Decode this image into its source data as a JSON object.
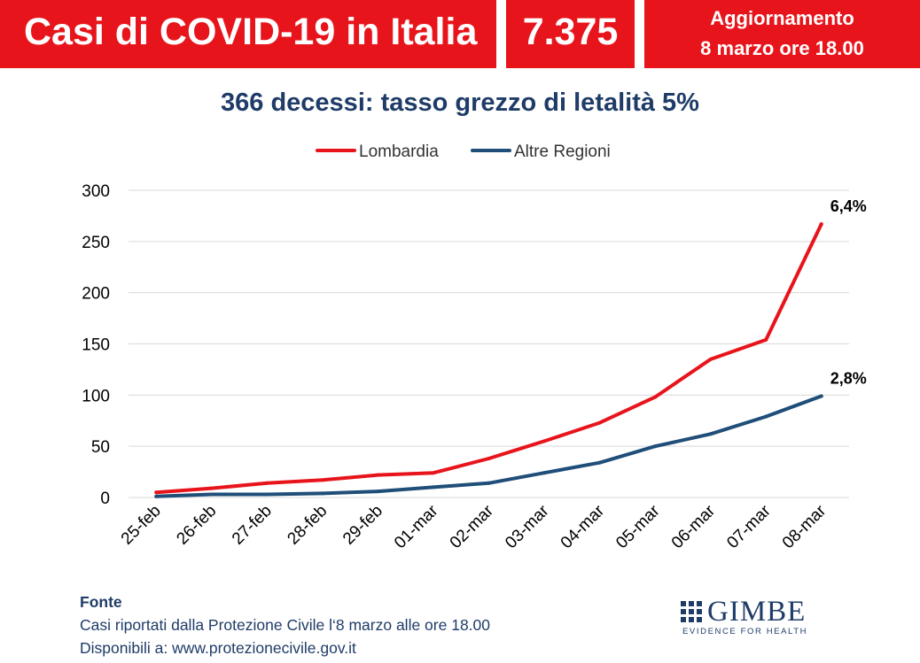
{
  "header": {
    "title": "Casi di COVID-19 in Italia",
    "count": "7.375",
    "update_line1": "Aggiornamento",
    "update_line2": "8 marzo ore 18.00"
  },
  "chart_data": {
    "type": "line",
    "title": "366 decessi: tasso grezzo di letalità 5%",
    "xlabel": "",
    "ylabel": "",
    "ylim": [
      0,
      300
    ],
    "yticks": [
      0,
      50,
      100,
      150,
      200,
      250,
      300
    ],
    "categories": [
      "25-feb",
      "26-feb",
      "27-feb",
      "28-feb",
      "29-feb",
      "01-mar",
      "02-mar",
      "03-mar",
      "04-mar",
      "05-mar",
      "06-mar",
      "07-mar",
      "08-mar"
    ],
    "series": [
      {
        "name": "Lombardia",
        "color": "#e8141b",
        "values": [
          5,
          9,
          14,
          17,
          22,
          24,
          38,
          55,
          73,
          98,
          135,
          154,
          267
        ],
        "end_label": "6,4%"
      },
      {
        "name": "Altre Regioni",
        "color": "#1f4e79",
        "values": [
          1,
          3,
          3,
          4,
          6,
          10,
          14,
          24,
          34,
          50,
          62,
          79,
          99
        ],
        "end_label": "2,8%"
      }
    ],
    "grid": true,
    "legend": "top-center"
  },
  "source": {
    "heading": "Fonte",
    "line1": "Casi riportati dalla Protezione Civile  l‘8 marzo alle ore 18.00",
    "line2": "Disponibili a: www.protezionecivile.gov.it"
  },
  "logo": {
    "name": "GIMBE",
    "tagline": "EVIDENCE FOR HEALTH"
  }
}
